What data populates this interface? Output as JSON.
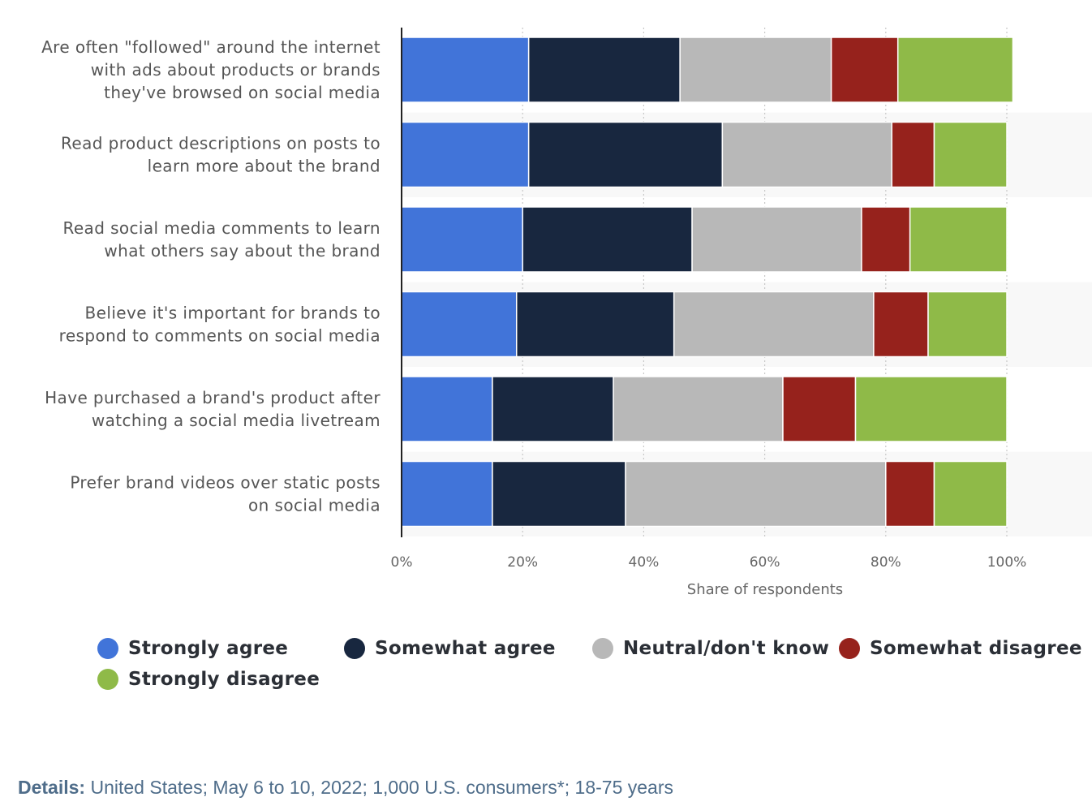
{
  "chart_data": {
    "type": "bar",
    "orientation": "horizontal",
    "stacked": true,
    "categories": [
      [
        "Are often \"followed\" around the internet",
        "with ads about products or brands",
        "they've browsed on social media"
      ],
      [
        "Read product descriptions on posts to",
        "learn more about the brand"
      ],
      [
        "Read social media comments to learn",
        "what others say about the brand"
      ],
      [
        "Believe it's important for brands to",
        "respond to comments on social media"
      ],
      [
        "Have purchased a brand's product after",
        "watching a social media livetream"
      ],
      [
        "Prefer brand videos over static posts",
        "on social media"
      ]
    ],
    "series": [
      {
        "name": "Strongly agree",
        "color": "#4174d9",
        "values": [
          21,
          21,
          20,
          19,
          15,
          15
        ]
      },
      {
        "name": "Somewhat agree",
        "color": "#18273f",
        "values": [
          25,
          32,
          28,
          26,
          20,
          22
        ]
      },
      {
        "name": "Neutral/don't know",
        "color": "#b8b8b8",
        "values": [
          25,
          28,
          28,
          33,
          28,
          43
        ]
      },
      {
        "name": "Somewhat disagree",
        "color": "#96221c",
        "values": [
          11,
          7,
          8,
          9,
          12,
          8
        ]
      },
      {
        "name": "Strongly disagree",
        "color": "#8fba48",
        "values": [
          19,
          12,
          16,
          13,
          25,
          12
        ]
      }
    ],
    "xlabel": "Share of respondents",
    "xlim": [
      0,
      100
    ],
    "xticks": [
      "0%",
      "20%",
      "40%",
      "60%",
      "80%",
      "100%"
    ],
    "grid": true,
    "legend": "bottom"
  },
  "details": {
    "label": "Details:",
    "text": " United States; May 6 to 10, 2022; 1,000 U.S. consumers*; 18-75 years"
  }
}
